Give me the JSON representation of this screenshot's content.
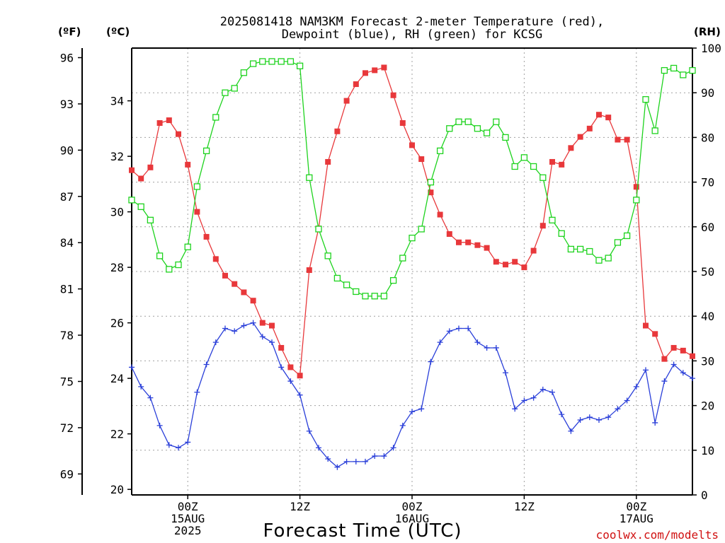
{
  "chart_data": {
    "type": "line",
    "title": "2025081418 NAM3KM Forecast 2-meter Temperature (red),",
    "subtitle": "Dewpoint (blue), RH (green) for KCSG",
    "xlabel": "Forecast Time (UTC)",
    "credit": "coolwx.com/modelts",
    "units": {
      "fahrenheit": "(ºF)",
      "celsius": "(ºC)",
      "rh": "(RH)"
    },
    "x_hours": [
      0,
      1,
      2,
      3,
      4,
      5,
      6,
      7,
      8,
      9,
      10,
      11,
      12,
      13,
      14,
      15,
      16,
      17,
      18,
      19,
      20,
      21,
      22,
      23,
      24,
      25,
      26,
      27,
      28,
      29,
      30,
      31,
      32,
      33,
      34,
      35,
      36,
      37,
      38,
      39,
      40,
      41,
      42,
      43,
      44,
      45,
      46,
      47,
      48,
      49,
      50,
      51,
      52,
      53,
      54,
      55,
      56,
      57,
      58,
      59,
      60
    ],
    "xlim": [
      0,
      60
    ],
    "x_ticks": [
      {
        "hour": 6,
        "lines": [
          "00Z",
          "15AUG",
          "2025"
        ]
      },
      {
        "hour": 18,
        "lines": [
          "12Z"
        ]
      },
      {
        "hour": 30,
        "lines": [
          "00Z",
          "16AUG"
        ]
      },
      {
        "hour": 42,
        "lines": [
          "12Z"
        ]
      },
      {
        "hour": 54,
        "lines": [
          "00Z",
          "17AUG"
        ]
      }
    ],
    "celsius_axis": {
      "range": [
        19.8,
        35.9
      ],
      "ticks": [
        20,
        22,
        24,
        26,
        28,
        30,
        32,
        34
      ]
    },
    "fahrenheit_axis": {
      "ticks": [
        69,
        72,
        75,
        78,
        81,
        84,
        87,
        90,
        93,
        96
      ]
    },
    "rh_axis": {
      "range": [
        0,
        100
      ],
      "ticks": [
        0,
        10,
        20,
        30,
        40,
        50,
        60,
        70,
        80,
        90,
        100
      ]
    },
    "grid": true,
    "series": [
      {
        "name": "Temperature (red)",
        "color": "#e8383b",
        "marker": "filled-square",
        "axis": "celsius",
        "values": [
          31.5,
          31.2,
          31.6,
          33.2,
          33.3,
          32.8,
          31.7,
          30.0,
          29.1,
          28.3,
          27.7,
          27.4,
          27.1,
          26.8,
          26.0,
          25.9,
          25.1,
          24.4,
          24.1,
          27.9,
          29.4,
          31.8,
          32.9,
          34.0,
          34.6,
          35.0,
          35.1,
          35.2,
          34.2,
          33.2,
          32.4,
          31.9,
          30.7,
          29.9,
          29.2,
          28.9,
          28.9,
          28.8,
          28.7,
          28.2,
          28.1,
          28.2,
          28.0,
          28.6,
          29.5,
          31.8,
          31.7,
          32.3,
          32.7,
          33.0,
          33.5,
          33.4,
          32.6,
          32.6,
          30.9,
          25.9,
          25.6,
          24.7,
          25.1,
          25.0,
          24.8
        ]
      },
      {
        "name": "Dewpoint (blue)",
        "color": "#2a3fd9",
        "marker": "plus",
        "axis": "celsius",
        "values": [
          24.4,
          23.7,
          23.3,
          22.3,
          21.6,
          21.5,
          21.7,
          23.5,
          24.5,
          25.3,
          25.8,
          25.7,
          25.9,
          26.0,
          25.5,
          25.3,
          24.4,
          23.9,
          23.4,
          22.1,
          21.5,
          21.1,
          20.8,
          21.0,
          21.0,
          21.0,
          21.2,
          21.2,
          21.5,
          22.3,
          22.8,
          22.9,
          24.6,
          25.3,
          25.7,
          25.8,
          25.8,
          25.3,
          25.1,
          25.1,
          24.2,
          22.9,
          23.2,
          23.3,
          23.6,
          23.5,
          22.7,
          22.1,
          22.5,
          22.6,
          22.5,
          22.6,
          22.9,
          23.2,
          23.7,
          24.3,
          22.4,
          23.9,
          24.5,
          24.2,
          24.0
        ]
      },
      {
        "name": "RH (green)",
        "color": "#1ed31e",
        "marker": "open-square",
        "axis": "rh",
        "values": [
          66,
          64.5,
          61.5,
          53.5,
          50.5,
          51.5,
          55.5,
          69,
          77,
          84.5,
          90,
          91,
          94.5,
          96.5,
          97,
          97,
          97,
          97,
          96,
          71,
          59.5,
          53.5,
          48.5,
          47,
          45.5,
          44.5,
          44.5,
          44.5,
          48,
          53,
          57.5,
          59.5,
          70,
          77,
          82,
          83.5,
          83.5,
          82,
          81,
          83.5,
          80,
          73.5,
          75.5,
          73.5,
          71,
          61.5,
          58.5,
          55,
          55,
          54.5,
          52.5,
          53,
          56.5,
          58,
          66,
          88.5,
          81.5,
          95,
          95.5,
          94,
          95
        ]
      }
    ]
  }
}
